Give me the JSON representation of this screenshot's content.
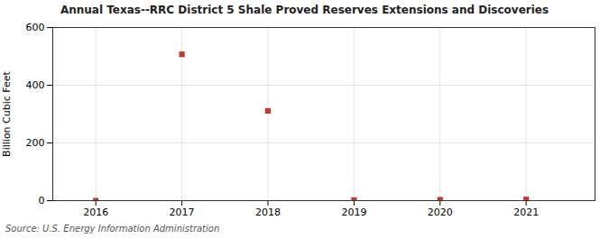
{
  "chart_data": {
    "type": "scatter",
    "title": "Annual Texas--RRC District 5 Shale Proved Reserves Extensions and Discoveries",
    "ylabel": "Billion Cubic Feet",
    "annotations": [
      "Source: U.S. Energy Information Administration"
    ],
    "x": [
      2016,
      2017,
      2018,
      2019,
      2020,
      2021
    ],
    "values": [
      0,
      507,
      311,
      2,
      3,
      4
    ],
    "color": "#c0392b",
    "marker": "square",
    "xlim": [
      2015.5,
      2021.8
    ],
    "xticks": [
      2016,
      2017,
      2018,
      2019,
      2020,
      2021
    ],
    "ylim": [
      0,
      600
    ],
    "yticks": [
      0,
      200,
      400,
      600
    ],
    "grid": true
  }
}
